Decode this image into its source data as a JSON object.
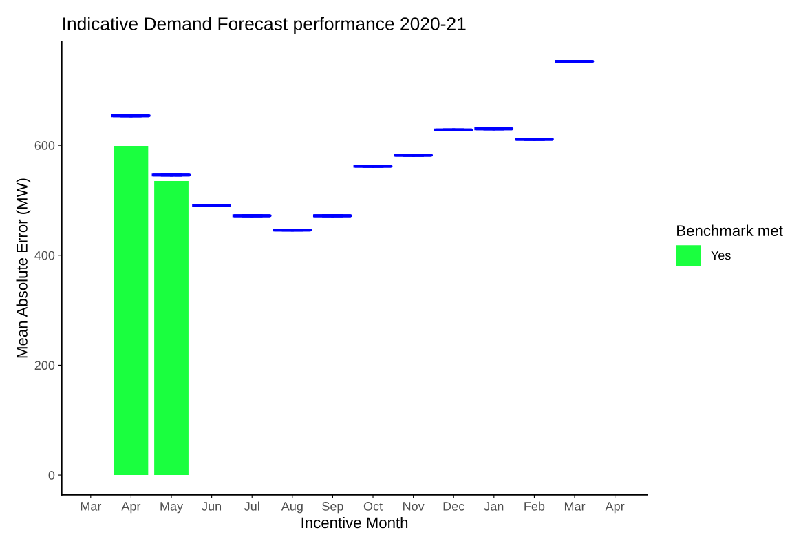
{
  "chart_data": {
    "type": "bar",
    "title": "Indicative Demand Forecast performance 2020-21",
    "xlabel": "Incentive Month",
    "ylabel": "Mean Absolute Error (MW)",
    "legend_title": "Benchmark met",
    "categories": [
      "Mar",
      "Apr",
      "May",
      "Jun",
      "Jul",
      "Aug",
      "Sep",
      "Oct",
      "Nov",
      "Dec",
      "Jan",
      "Feb",
      "Mar",
      "Apr"
    ],
    "series": [
      {
        "name": "Yes",
        "color": "#1aff3f",
        "values": [
          null,
          599,
          535,
          null,
          null,
          null,
          null,
          null,
          null,
          null,
          null,
          null,
          null,
          null
        ]
      },
      {
        "type": "box",
        "color": "#0000ff",
        "boxes": [
          null,
          {
            "low": 654,
            "q1": 654,
            "median": 654,
            "q3": 654,
            "high": 654
          },
          {
            "low": 546,
            "q1": 546,
            "median": 546,
            "q3": 546,
            "high": 546
          },
          {
            "low": 491,
            "q1": 491,
            "median": 491,
            "q3": 491,
            "high": 491
          },
          {
            "low": 472,
            "q1": 472,
            "median": 472,
            "q3": 472,
            "high": 472
          },
          {
            "low": 446,
            "q1": 446,
            "median": 446,
            "q3": 446,
            "high": 446
          },
          {
            "low": 472,
            "q1": 472,
            "median": 472,
            "q3": 472,
            "high": 472
          },
          {
            "low": 562,
            "q1": 562,
            "median": 562,
            "q3": 562,
            "high": 562
          },
          {
            "low": 582,
            "q1": 582,
            "median": 582,
            "q3": 582,
            "high": 582
          },
          {
            "low": 628,
            "q1": 628,
            "median": 628,
            "q3": 628,
            "high": 628
          },
          {
            "low": 630,
            "q1": 630,
            "median": 630,
            "q3": 630,
            "high": 630
          },
          {
            "low": 611,
            "q1": 611,
            "median": 611,
            "q3": 611,
            "high": 611
          },
          {
            "low": 753,
            "q1": 753,
            "median": 753,
            "q3": 753,
            "high": 753
          },
          null
        ]
      }
    ],
    "ylim": [
      -36,
      789
    ],
    "yticks": [
      0,
      200,
      400,
      600
    ],
    "grid": false,
    "legend": "right"
  }
}
